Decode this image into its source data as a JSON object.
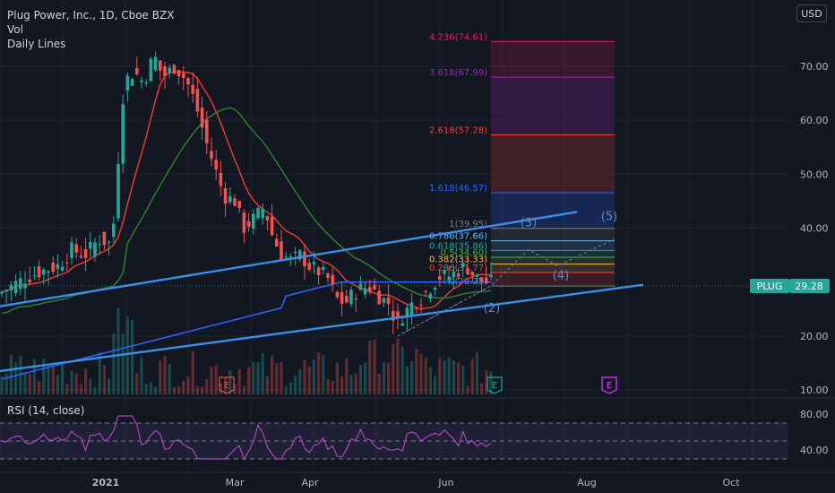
{
  "legend": {
    "symbol_line": "Plug Power, Inc., 1D, Cboe BZX",
    "vol_label": "Vol",
    "lines_label": "Daily Lines"
  },
  "currency": "USD",
  "price_tag": {
    "ticker": "PLUG",
    "value": "29.28",
    "color": "#26a69a"
  },
  "rsi_label": "RSI (14, close)",
  "chart_data": {
    "type": "candlestick",
    "x_ticks": [
      "2021",
      "Mar",
      "Apr",
      "Jun",
      "Aug",
      "Oct"
    ],
    "y_ticks": [
      "70.00",
      "60.00",
      "50.00",
      "40.00",
      "20.00",
      "10.00"
    ],
    "y_tick_values": [
      70,
      60,
      50,
      40,
      20,
      10
    ],
    "price_range": [
      8,
      80
    ],
    "rsi_ticks": [
      "80.00",
      "40.00"
    ],
    "rsi_tick_values": [
      80,
      40
    ],
    "rsi_range": [
      20,
      100
    ],
    "rsi_band": [
      30,
      70
    ],
    "fib_levels": [
      {
        "label": "4.236(74.61)",
        "value": 74.61,
        "color": "#e91e63",
        "fill": "rgba(233,30,99,0.18)"
      },
      {
        "label": "3.618(67.99)",
        "value": 67.99,
        "color": "#9c27b0",
        "fill": "rgba(156,39,176,0.22)"
      },
      {
        "label": "2.618(57.28)",
        "value": 57.28,
        "color": "#f44336",
        "fill": "rgba(244,67,54,0.20)"
      },
      {
        "label": "1.618(46.57)",
        "value": 46.57,
        "color": "#2962ff",
        "fill": "rgba(41,98,255,0.22)"
      },
      {
        "label": "1(39.95)",
        "value": 39.95,
        "color": "#787b86",
        "fill": "rgba(120,123,134,0.18)"
      },
      {
        "label": "0.786(37.66)",
        "value": 37.66,
        "color": "#64b5f6",
        "fill": "rgba(100,181,246,0.16)"
      },
      {
        "label": "0.618(35.86)",
        "value": 35.86,
        "color": "#26a69a",
        "fill": "rgba(38,166,154,0.18)"
      },
      {
        "label": "0.5(34.60)",
        "value": 34.6,
        "color": "#4caf50",
        "fill": "rgba(76,175,80,0.18)"
      },
      {
        "label": "0.382(33.33)",
        "value": 33.33,
        "color": "#ffb74d",
        "fill": "rgba(255,183,77,0.16)"
      },
      {
        "label": "0.236(31.77)",
        "value": 31.77,
        "color": "#f44336",
        "fill": "rgba(244,67,54,0.18)"
      },
      {
        "label": "0(29.25)",
        "value": 29.25,
        "color": "#787b86",
        "fill": "rgba(0,0,0,0)"
      }
    ],
    "wave_labels": [
      "(2)",
      "(3)",
      "(4)",
      "(5)"
    ],
    "earnings_markers": [
      "E",
      "E",
      "E"
    ],
    "last_price": 29.28
  }
}
